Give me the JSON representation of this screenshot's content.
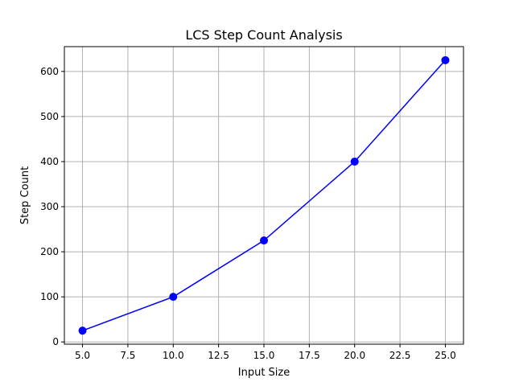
{
  "chart_data": {
    "type": "line",
    "title": "LCS Step Count Analysis",
    "xlabel": "Input Size",
    "ylabel": "Step Count",
    "x": [
      5,
      10,
      15,
      20,
      25
    ],
    "series": [
      {
        "values": [
          25,
          100,
          225,
          400,
          625
        ],
        "color": "#0000ff",
        "marker": "circle"
      }
    ],
    "xticks": [
      5.0,
      7.5,
      10.0,
      12.5,
      15.0,
      17.5,
      20.0,
      22.5,
      25.0
    ],
    "xtick_labels": [
      "5.0",
      "7.5",
      "10.0",
      "12.5",
      "15.0",
      "17.5",
      "20.0",
      "22.5",
      "25.0"
    ],
    "yticks": [
      0,
      100,
      200,
      300,
      400,
      500,
      600
    ],
    "ytick_labels": [
      "0",
      "100",
      "200",
      "300",
      "400",
      "500",
      "600"
    ],
    "xlim": [
      4.0,
      26.0
    ],
    "ylim": [
      -5.0,
      655.0
    ],
    "grid": true
  }
}
